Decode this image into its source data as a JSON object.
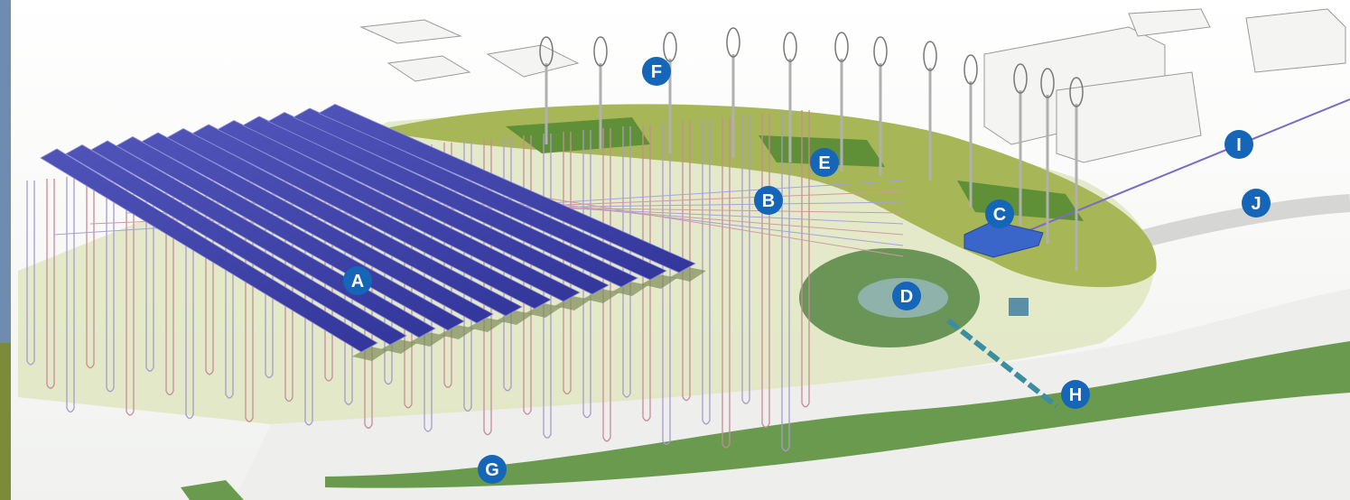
{
  "labels": [
    "A",
    "B",
    "C",
    "D",
    "E",
    "F",
    "G",
    "H",
    "I",
    "J"
  ]
}
